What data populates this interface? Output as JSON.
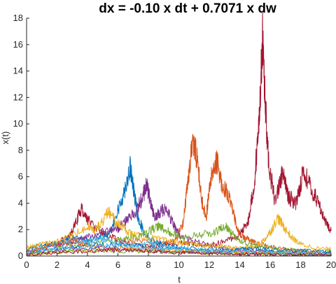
{
  "chart_data": {
    "type": "line",
    "title": "dx = -0.10 x dt + 0.7071 x dw",
    "xlabel": "t",
    "ylabel": "x(t)",
    "xlim": [
      0,
      20
    ],
    "ylim": [
      0,
      18
    ],
    "xticks": [
      0,
      2,
      4,
      6,
      8,
      10,
      12,
      14,
      16,
      18,
      20
    ],
    "yticks": [
      0,
      2,
      4,
      6,
      8,
      10,
      12,
      14,
      16,
      18
    ],
    "grid": false,
    "box": false,
    "series": [
      {
        "color": "#A2142F",
        "points": [
          [
            0,
            0.3
          ],
          [
            1,
            0.6
          ],
          [
            2,
            1.0
          ],
          [
            2.8,
            1.4
          ],
          [
            3.2,
            2.4
          ],
          [
            3.6,
            3.6
          ],
          [
            4.0,
            2.8
          ],
          [
            4.6,
            2.0
          ],
          [
            5.2,
            1.6
          ],
          [
            6,
            1.2
          ],
          [
            7,
            0.8
          ],
          [
            8,
            0.7
          ],
          [
            9,
            0.9
          ],
          [
            10,
            1.0
          ],
          [
            11,
            0.9
          ],
          [
            12,
            0.8
          ],
          [
            13,
            1.1
          ],
          [
            14,
            1.6
          ],
          [
            14.6,
            2.8
          ],
          [
            15.0,
            6.0
          ],
          [
            15.3,
            11.0
          ],
          [
            15.5,
            16.4
          ],
          [
            15.7,
            11.0
          ],
          [
            15.9,
            7.0
          ],
          [
            16.3,
            4.2
          ],
          [
            16.8,
            6.2
          ],
          [
            17.2,
            4.5
          ],
          [
            17.7,
            4.0
          ],
          [
            18.2,
            6.5
          ],
          [
            18.7,
            5.0
          ],
          [
            19.2,
            4.0
          ],
          [
            19.6,
            2.6
          ],
          [
            20,
            1.9
          ]
        ]
      },
      {
        "color": "#D95319",
        "points": [
          [
            0,
            0.4
          ],
          [
            2,
            0.8
          ],
          [
            4,
            1.1
          ],
          [
            6,
            1.3
          ],
          [
            8,
            1.1
          ],
          [
            9,
            1.0
          ],
          [
            9.8,
            1.2
          ],
          [
            10.3,
            2.6
          ],
          [
            10.6,
            5.8
          ],
          [
            10.9,
            8.6
          ],
          [
            11.2,
            7.5
          ],
          [
            11.5,
            4.2
          ],
          [
            11.8,
            3.0
          ],
          [
            12.1,
            5.8
          ],
          [
            12.5,
            7.2
          ],
          [
            12.8,
            5.5
          ],
          [
            13.2,
            4.8
          ],
          [
            13.6,
            3.1
          ],
          [
            14.0,
            1.6
          ],
          [
            14.6,
            1.2
          ],
          [
            15,
            1.0
          ],
          [
            16,
            0.7
          ],
          [
            17,
            0.5
          ],
          [
            18,
            0.4
          ],
          [
            20,
            0.3
          ]
        ]
      },
      {
        "color": "#0072BD",
        "points": [
          [
            0,
            0.5
          ],
          [
            1,
            0.8
          ],
          [
            2,
            1.0
          ],
          [
            3,
            1.4
          ],
          [
            4,
            1.2
          ],
          [
            5,
            1.5
          ],
          [
            5.6,
            2.0
          ],
          [
            6.0,
            3.4
          ],
          [
            6.4,
            4.8
          ],
          [
            6.8,
            6.7
          ],
          [
            7.0,
            5.2
          ],
          [
            7.3,
            3.0
          ],
          [
            7.7,
            1.8
          ],
          [
            8.2,
            1.2
          ],
          [
            9,
            0.9
          ],
          [
            10,
            0.6
          ],
          [
            12,
            0.5
          ],
          [
            14,
            0.4
          ],
          [
            16,
            0.3
          ],
          [
            18,
            0.25
          ],
          [
            20,
            0.2
          ]
        ]
      },
      {
        "color": "#7E2F8E",
        "points": [
          [
            0,
            0.3
          ],
          [
            2,
            0.7
          ],
          [
            3,
            1.1
          ],
          [
            4,
            1.4
          ],
          [
            5,
            1.8
          ],
          [
            6,
            2.1
          ],
          [
            6.6,
            2.8
          ],
          [
            7.2,
            3.4
          ],
          [
            7.6,
            4.4
          ],
          [
            7.9,
            5.4
          ],
          [
            8.1,
            4.2
          ],
          [
            8.4,
            2.8
          ],
          [
            8.8,
            3.4
          ],
          [
            9.2,
            3.6
          ],
          [
            9.6,
            2.5
          ],
          [
            10,
            1.6
          ],
          [
            11,
            1.1
          ],
          [
            12,
            0.8
          ],
          [
            13,
            0.6
          ],
          [
            15,
            0.4
          ],
          [
            17,
            0.3
          ],
          [
            20,
            0.25
          ]
        ]
      },
      {
        "color": "#EDB120",
        "points": [
          [
            0,
            0.6
          ],
          [
            1,
            0.9
          ],
          [
            2,
            1.1
          ],
          [
            3,
            1.6
          ],
          [
            4,
            2.2
          ],
          [
            4.5,
            2.0
          ],
          [
            5,
            2.6
          ],
          [
            5.4,
            3.4
          ],
          [
            5.8,
            2.6
          ],
          [
            6.3,
            2.2
          ],
          [
            7,
            1.6
          ],
          [
            8,
            1.4
          ],
          [
            9,
            1.2
          ],
          [
            10,
            1.0
          ],
          [
            11,
            0.9
          ],
          [
            12,
            0.8
          ],
          [
            13,
            0.7
          ],
          [
            14,
            0.6
          ],
          [
            15,
            0.7
          ],
          [
            15.6,
            1.2
          ],
          [
            16.1,
            2.0
          ],
          [
            16.5,
            2.9
          ],
          [
            16.9,
            2.2
          ],
          [
            17.4,
            1.4
          ],
          [
            18,
            0.9
          ],
          [
            19,
            0.6
          ],
          [
            20,
            0.5
          ]
        ]
      },
      {
        "color": "#77AC30",
        "points": [
          [
            0,
            0.2
          ],
          [
            2,
            0.6
          ],
          [
            4,
            0.9
          ],
          [
            6,
            1.2
          ],
          [
            7,
            1.4
          ],
          [
            8,
            1.8
          ],
          [
            8.6,
            2.3
          ],
          [
            9.0,
            2.0
          ],
          [
            9.6,
            1.7
          ],
          [
            10.4,
            1.4
          ],
          [
            11.4,
            1.6
          ],
          [
            12.4,
            1.8
          ],
          [
            13.0,
            2.3
          ],
          [
            13.5,
            1.7
          ],
          [
            14,
            1.1
          ],
          [
            15,
            0.8
          ],
          [
            16,
            0.6
          ],
          [
            17,
            0.5
          ],
          [
            18,
            0.4
          ],
          [
            20,
            0.35
          ]
        ]
      },
      {
        "color": "#4DBEEE",
        "points": [
          [
            0,
            0.4
          ],
          [
            1,
            0.5
          ],
          [
            2,
            0.9
          ],
          [
            3,
            1.2
          ],
          [
            4,
            1.0
          ],
          [
            5,
            1.3
          ],
          [
            6,
            1.0
          ],
          [
            7,
            0.8
          ],
          [
            8,
            1.0
          ],
          [
            9,
            0.8
          ],
          [
            10,
            0.6
          ],
          [
            11,
            0.5
          ],
          [
            12,
            0.4
          ],
          [
            13,
            0.4
          ],
          [
            14,
            0.3
          ],
          [
            16,
            0.3
          ],
          [
            18,
            0.2
          ],
          [
            20,
            0.2
          ]
        ]
      },
      {
        "color": "#0072BD",
        "points": [
          [
            0,
            0.2
          ],
          [
            2,
            0.5
          ],
          [
            4,
            0.8
          ],
          [
            6,
            0.9
          ],
          [
            8,
            0.7
          ],
          [
            10,
            0.5
          ],
          [
            12,
            0.4
          ],
          [
            14,
            0.5
          ],
          [
            15,
            0.6
          ],
          [
            16,
            0.5
          ],
          [
            18,
            0.4
          ],
          [
            20,
            0.3
          ]
        ]
      },
      {
        "color": "#D95319",
        "points": [
          [
            0,
            0.3
          ],
          [
            2,
            0.9
          ],
          [
            3,
            1.2
          ],
          [
            4,
            0.8
          ],
          [
            6,
            0.6
          ],
          [
            8,
            0.5
          ],
          [
            10,
            0.4
          ],
          [
            12,
            0.3
          ],
          [
            14,
            0.3
          ],
          [
            16,
            0.25
          ],
          [
            18,
            0.2
          ],
          [
            20,
            0.15
          ]
        ]
      },
      {
        "color": "#EDB120",
        "points": [
          [
            0,
            0.1
          ],
          [
            2,
            0.3
          ],
          [
            4,
            0.5
          ],
          [
            6,
            0.6
          ],
          [
            8,
            0.5
          ],
          [
            10,
            0.4
          ],
          [
            12,
            0.3
          ],
          [
            14,
            0.25
          ],
          [
            16,
            0.2
          ],
          [
            18,
            0.15
          ],
          [
            20,
            0.1
          ]
        ]
      },
      {
        "color": "#7E2F8E",
        "points": [
          [
            0,
            0.2
          ],
          [
            2,
            0.4
          ],
          [
            4,
            0.6
          ],
          [
            6,
            0.5
          ],
          [
            8,
            0.4
          ],
          [
            10,
            0.3
          ],
          [
            12,
            0.25
          ],
          [
            14,
            0.2
          ],
          [
            16,
            0.15
          ],
          [
            18,
            0.1
          ],
          [
            20,
            0.1
          ]
        ]
      },
      {
        "color": "#77AC30",
        "points": [
          [
            0,
            0.15
          ],
          [
            2,
            0.3
          ],
          [
            4,
            0.4
          ],
          [
            6,
            0.35
          ],
          [
            8,
            0.3
          ],
          [
            10,
            0.25
          ],
          [
            12,
            0.2
          ],
          [
            14,
            0.15
          ],
          [
            16,
            0.1
          ],
          [
            18,
            0.08
          ],
          [
            20,
            0.05
          ]
        ]
      },
      {
        "color": "#4DBEEE",
        "points": [
          [
            0,
            0.25
          ],
          [
            2,
            0.5
          ],
          [
            4,
            0.7
          ],
          [
            6,
            0.8
          ],
          [
            8,
            0.6
          ],
          [
            10,
            0.5
          ],
          [
            12,
            0.35
          ],
          [
            14,
            0.3
          ],
          [
            16,
            0.25
          ],
          [
            18,
            0.2
          ],
          [
            20,
            0.15
          ]
        ]
      },
      {
        "color": "#A2142F",
        "points": [
          [
            0,
            0.1
          ],
          [
            2,
            0.25
          ],
          [
            4,
            0.35
          ],
          [
            6,
            0.45
          ],
          [
            8,
            0.35
          ],
          [
            10,
            0.25
          ],
          [
            12,
            0.2
          ],
          [
            14,
            0.15
          ],
          [
            16,
            0.12
          ],
          [
            18,
            0.1
          ],
          [
            20,
            0.08
          ]
        ]
      }
    ]
  }
}
